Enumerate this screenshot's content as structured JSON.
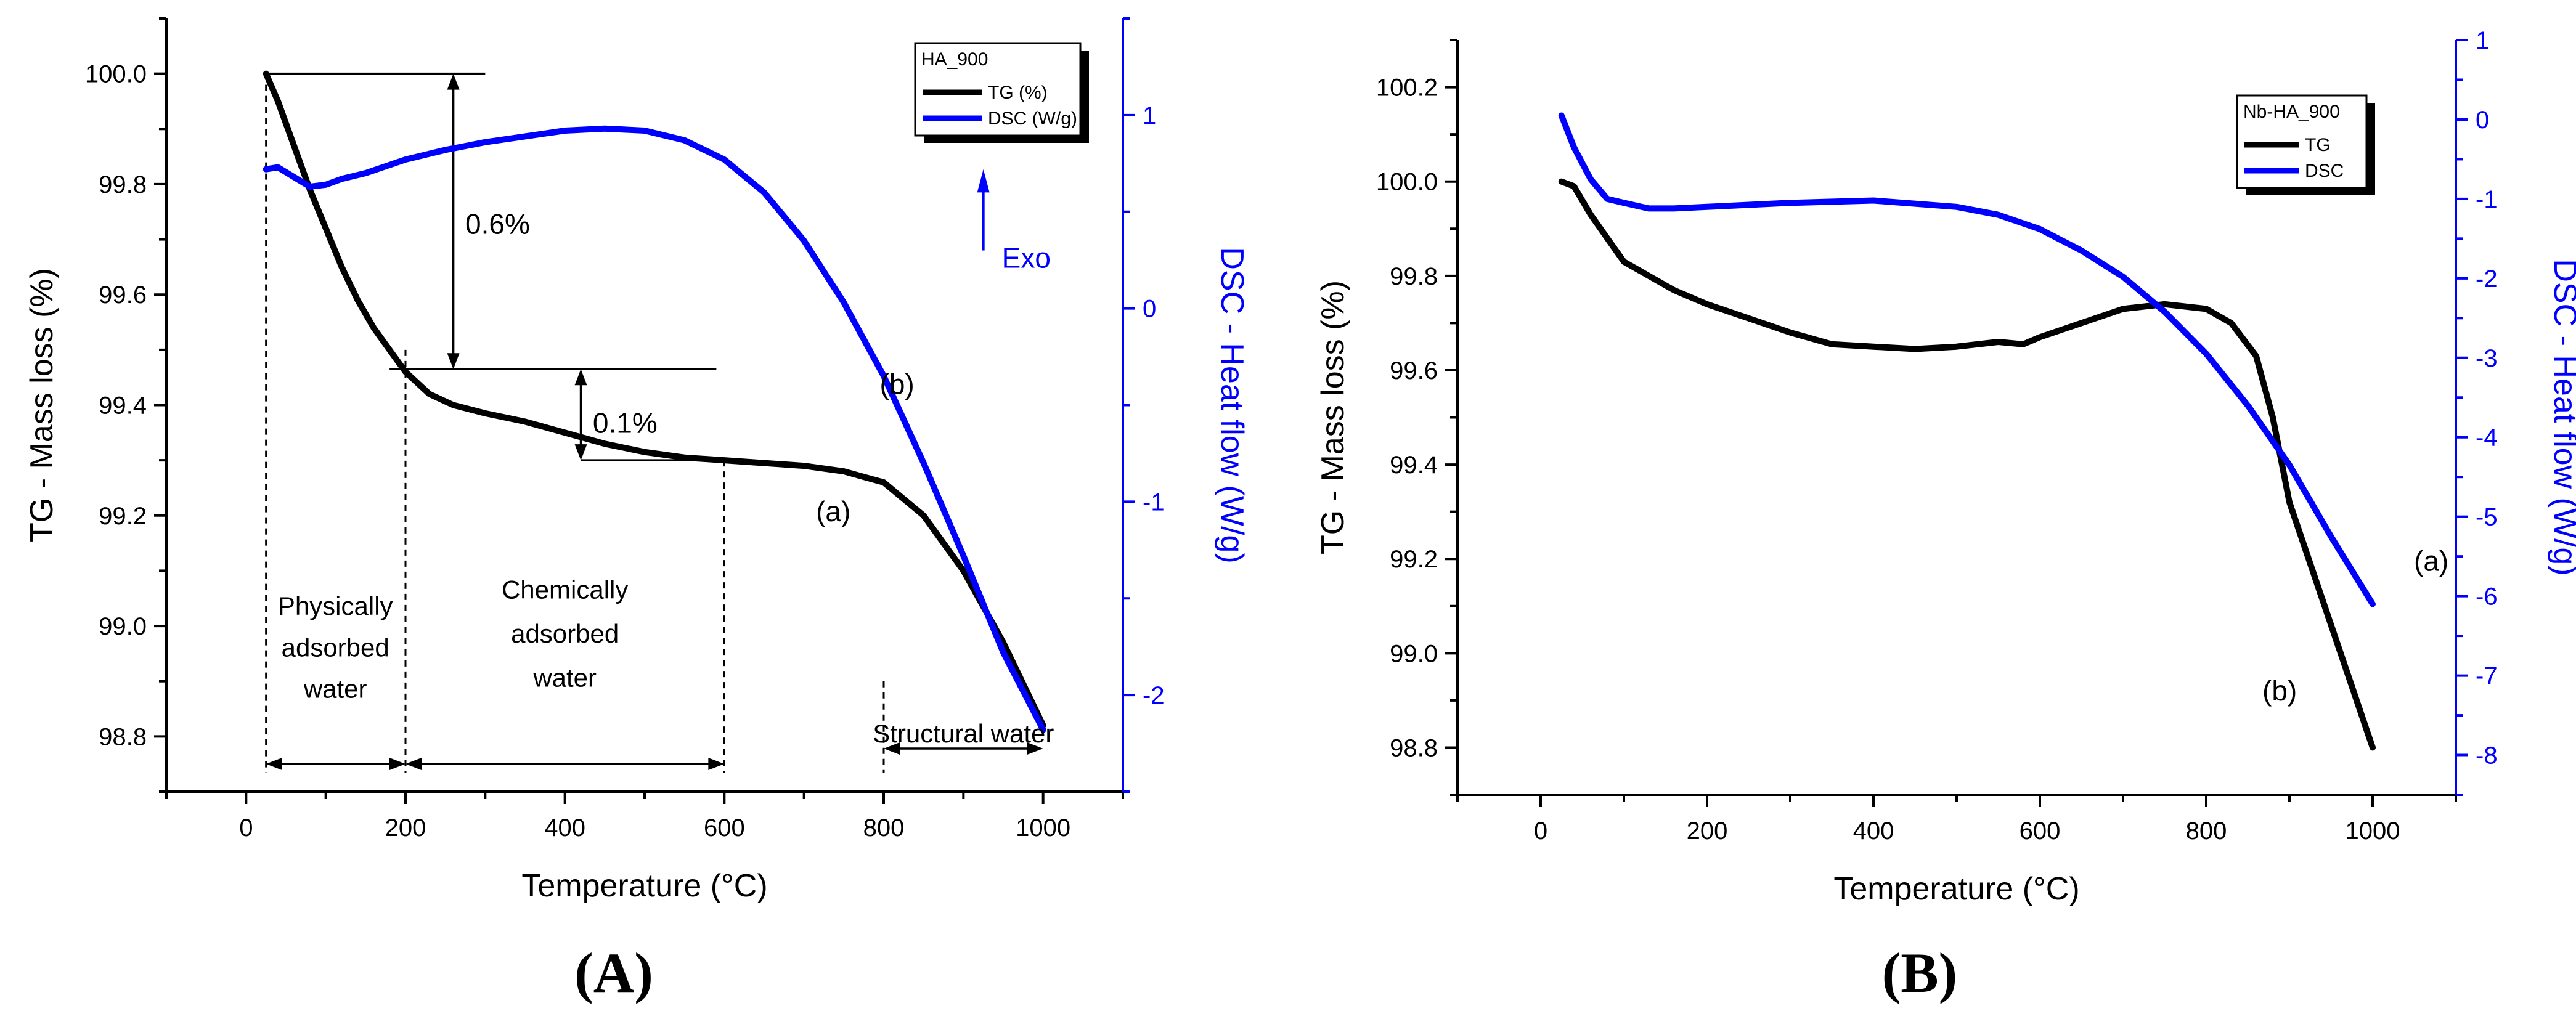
{
  "chart_data": [
    {
      "type": "line",
      "panel_label": "(A)",
      "xlabel": "Temperature (°C)",
      "xlim": [
        -100,
        1100
      ],
      "xticks": [
        0,
        200,
        400,
        600,
        800,
        1000
      ],
      "xtick_labels": [
        "0",
        "200",
        "400",
        "600",
        "800",
        "1000"
      ],
      "ylabel_left": "TG - Mass loss (%)",
      "ylim_left": [
        98.7,
        100.1
      ],
      "yticks_left": [
        98.8,
        99.0,
        99.2,
        99.4,
        99.6,
        99.8,
        100.0
      ],
      "ytick_labels_left": [
        "98.8",
        "99.0",
        "99.2",
        "99.4",
        "99.6",
        "99.8",
        "100.0"
      ],
      "ylabel_right": "DSC - Heat flow (W/g)",
      "ylim_right": [
        -2.5,
        1.5
      ],
      "yticks_right": [
        -2,
        -1,
        0,
        1
      ],
      "ytick_labels_right": [
        "-2",
        "-1",
        "0",
        "1"
      ],
      "legend": {
        "title": "HA_900",
        "entries": [
          {
            "label": "TG (%)",
            "color": "#000000"
          },
          {
            "label": "DSC (W/g)",
            "color": "#0000ff"
          }
        ],
        "placement": "top-right"
      },
      "series": [
        {
          "name": "TG (%)",
          "axis": "left",
          "color": "#000000",
          "x": [
            25,
            40,
            60,
            80,
            100,
            120,
            140,
            160,
            180,
            200,
            230,
            260,
            300,
            350,
            400,
            450,
            500,
            550,
            600,
            650,
            700,
            750,
            800,
            850,
            900,
            950,
            1000
          ],
          "y": [
            100.0,
            99.95,
            99.87,
            99.79,
            99.72,
            99.65,
            99.59,
            99.54,
            99.5,
            99.46,
            99.42,
            99.4,
            99.385,
            99.37,
            99.35,
            99.33,
            99.315,
            99.305,
            99.3,
            99.295,
            99.29,
            99.28,
            99.26,
            99.2,
            99.1,
            98.97,
            98.82
          ]
        },
        {
          "name": "DSC (W/g)",
          "axis": "right",
          "color": "#0000ff",
          "x": [
            25,
            40,
            60,
            80,
            100,
            120,
            150,
            200,
            250,
            300,
            350,
            400,
            450,
            500,
            550,
            600,
            650,
            700,
            750,
            800,
            850,
            900,
            950,
            1000
          ],
          "y": [
            0.72,
            0.73,
            0.68,
            0.63,
            0.64,
            0.67,
            0.7,
            0.77,
            0.82,
            0.86,
            0.89,
            0.92,
            0.93,
            0.92,
            0.87,
            0.77,
            0.6,
            0.35,
            0.03,
            -0.35,
            -0.8,
            -1.28,
            -1.78,
            -2.18
          ]
        }
      ],
      "annotations": {
        "step1": "0.6%",
        "step2": "0.1%",
        "exo": "Exo",
        "label_a": "(a)",
        "label_b": "(b)",
        "region1": [
          "Physically",
          "adsorbed",
          "water"
        ],
        "region2": [
          "Chemically",
          "adsorbed",
          "water"
        ],
        "region3": "Structural water"
      }
    },
    {
      "type": "line",
      "panel_label": "(B)",
      "xlabel": "Temperature (°C)",
      "xlim": [
        -100,
        1100
      ],
      "xticks": [
        0,
        200,
        400,
        600,
        800,
        1000
      ],
      "xtick_labels": [
        "0",
        "200",
        "400",
        "600",
        "800",
        "1000"
      ],
      "ylabel_left": "TG - Mass loss (%)",
      "ylim_left": [
        98.7,
        100.3
      ],
      "yticks_left": [
        98.8,
        99.0,
        99.2,
        99.4,
        99.6,
        99.8,
        100.0,
        100.2
      ],
      "ytick_labels_left": [
        "98.8",
        "99.0",
        "99.2",
        "99.4",
        "99.6",
        "99.8",
        "100.0",
        "100.2"
      ],
      "ylabel_right": "DSC - Heat flow (W/g)",
      "ylim_right": [
        -8.5,
        1
      ],
      "yticks_right": [
        -8,
        -7,
        -6,
        -5,
        -4,
        -3,
        -2,
        -1,
        0,
        1
      ],
      "ytick_labels_right": [
        "-8",
        "-7",
        "-6",
        "-5",
        "-4",
        "-3",
        "-2",
        "-1",
        "0",
        "1"
      ],
      "legend": {
        "title": "Nb-HA_900",
        "entries": [
          {
            "label": "TG",
            "color": "#000000"
          },
          {
            "label": "DSC",
            "color": "#0000ff"
          }
        ],
        "placement": "top-right"
      },
      "series": [
        {
          "name": "TG",
          "axis": "left",
          "color": "#000000",
          "x": [
            25,
            40,
            60,
            80,
            100,
            130,
            160,
            200,
            250,
            300,
            350,
            400,
            450,
            500,
            550,
            580,
            600,
            650,
            700,
            750,
            800,
            830,
            860,
            880,
            900,
            950,
            1000
          ],
          "y": [
            100.0,
            99.99,
            99.93,
            99.88,
            99.83,
            99.8,
            99.77,
            99.74,
            99.71,
            99.68,
            99.655,
            99.65,
            99.645,
            99.65,
            99.66,
            99.655,
            99.67,
            99.7,
            99.73,
            99.74,
            99.73,
            99.7,
            99.63,
            99.5,
            99.32,
            99.06,
            98.8
          ]
        },
        {
          "name": "DSC",
          "axis": "right",
          "color": "#0000ff",
          "x": [
            25,
            40,
            60,
            80,
            100,
            130,
            160,
            200,
            300,
            400,
            500,
            550,
            600,
            650,
            700,
            750,
            800,
            850,
            900,
            950,
            1000
          ],
          "y": [
            0.05,
            -0.35,
            -0.75,
            -1.0,
            -1.05,
            -1.12,
            -1.12,
            -1.1,
            -1.05,
            -1.02,
            -1.1,
            -1.2,
            -1.38,
            -1.65,
            -1.98,
            -2.42,
            -2.95,
            -3.6,
            -4.35,
            -5.25,
            -6.1
          ]
        }
      ],
      "annotations": {
        "label_a": "(a)",
        "label_b": "(b)"
      }
    }
  ]
}
